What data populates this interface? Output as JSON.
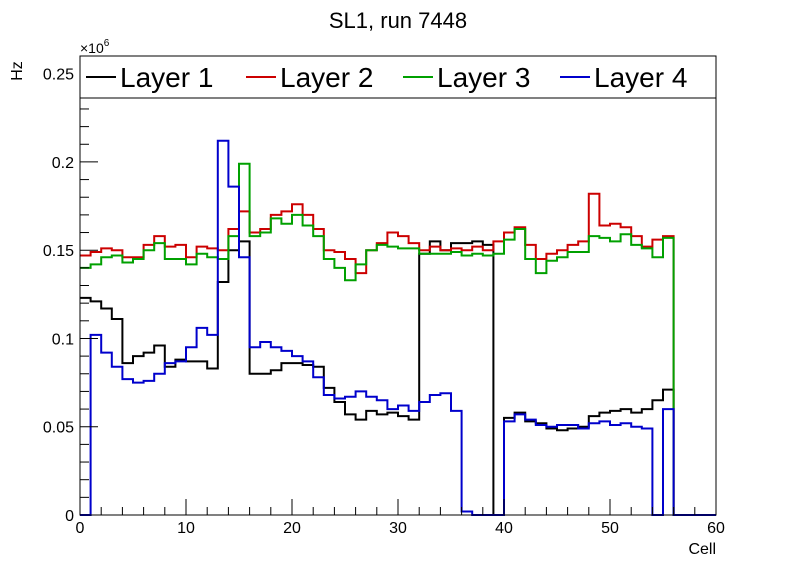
{
  "chart_data": {
    "type": "step",
    "title": "SL1, run 7448",
    "xlabel": "Cell",
    "ylabel": "Hz",
    "y_multiplier": "×10",
    "y_multiplier_exp": "6",
    "xlim": [
      0,
      60
    ],
    "ylim": [
      0,
      0.26
    ],
    "x_ticks": [
      0,
      10,
      20,
      30,
      40,
      50,
      60
    ],
    "x_tick_labels": [
      "0",
      "10",
      "20",
      "30",
      "40",
      "50",
      "60"
    ],
    "y_ticks": [
      0,
      0.05,
      0.1,
      0.15,
      0.2,
      0.25
    ],
    "y_tick_labels": [
      "0",
      "0.05",
      "0.1",
      "0.15",
      "0.2",
      "0.25"
    ],
    "bin_edges_start": 0,
    "bin_width": 1,
    "grid": false,
    "legend_position": "top",
    "series": [
      {
        "name": "Layer 1",
        "color": "#000000",
        "values": [
          0.123,
          0.121,
          0.117,
          0.111,
          0.086,
          0.09,
          0.092,
          0.096,
          0.084,
          0.088,
          0.087,
          0.087,
          0.083,
          0.132,
          0.15,
          0.155,
          0.08,
          0.08,
          0.082,
          0.086,
          0.086,
          0.085,
          0.084,
          0.072,
          0.064,
          0.057,
          0.054,
          0.059,
          0.057,
          0.058,
          0.056,
          0.054,
          0.148,
          0.155,
          0.15,
          0.154,
          0.154,
          0.155,
          0.153,
          0.0,
          0.055,
          0.058,
          0.053,
          0.052,
          0.049,
          0.048,
          0.049,
          0.05,
          0.056,
          0.058,
          0.059,
          0.06,
          0.058,
          0.06,
          0.065,
          0.071,
          0.0,
          0.0,
          0.0,
          0.0
        ]
      },
      {
        "name": "Layer 2",
        "color": "#cc0000",
        "values": [
          0.147,
          0.149,
          0.151,
          0.15,
          0.146,
          0.146,
          0.153,
          0.158,
          0.152,
          0.153,
          0.146,
          0.152,
          0.151,
          0.15,
          0.162,
          0.172,
          0.16,
          0.162,
          0.17,
          0.172,
          0.176,
          0.17,
          0.162,
          0.15,
          0.149,
          0.145,
          0.137,
          0.15,
          0.154,
          0.16,
          0.158,
          0.154,
          0.15,
          0.152,
          0.15,
          0.151,
          0.15,
          0.152,
          0.15,
          0.155,
          0.16,
          0.163,
          0.153,
          0.145,
          0.148,
          0.15,
          0.153,
          0.155,
          0.182,
          0.164,
          0.165,
          0.163,
          0.158,
          0.152,
          0.156,
          0.158,
          0.0,
          0.0,
          0.0,
          0.0
        ]
      },
      {
        "name": "Layer 3",
        "color": "#00a000",
        "values": [
          0.14,
          0.142,
          0.146,
          0.147,
          0.143,
          0.145,
          0.15,
          0.154,
          0.145,
          0.145,
          0.142,
          0.148,
          0.146,
          0.145,
          0.158,
          0.199,
          0.158,
          0.16,
          0.168,
          0.165,
          0.17,
          0.164,
          0.158,
          0.145,
          0.14,
          0.133,
          0.142,
          0.15,
          0.153,
          0.152,
          0.151,
          0.151,
          0.148,
          0.148,
          0.148,
          0.149,
          0.147,
          0.148,
          0.147,
          0.148,
          0.156,
          0.162,
          0.145,
          0.137,
          0.144,
          0.146,
          0.149,
          0.149,
          0.158,
          0.157,
          0.155,
          0.159,
          0.153,
          0.151,
          0.146,
          0.157,
          0.0,
          0.0,
          0.0,
          0.0
        ]
      },
      {
        "name": "Layer 4",
        "color": "#0000cc",
        "values": [
          0.0,
          0.102,
          0.092,
          0.084,
          0.077,
          0.075,
          0.076,
          0.08,
          0.086,
          0.087,
          0.095,
          0.106,
          0.102,
          0.212,
          0.186,
          0.146,
          0.095,
          0.098,
          0.095,
          0.093,
          0.09,
          0.087,
          0.078,
          0.068,
          0.066,
          0.067,
          0.07,
          0.067,
          0.065,
          0.06,
          0.062,
          0.059,
          0.064,
          0.068,
          0.069,
          0.059,
          0.002,
          0.0,
          0.0,
          0.0,
          0.053,
          0.057,
          0.054,
          0.051,
          0.05,
          0.051,
          0.051,
          0.049,
          0.052,
          0.053,
          0.051,
          0.052,
          0.05,
          0.049,
          0.0,
          0.06,
          0.0,
          0.0,
          0.0,
          0.0
        ]
      }
    ]
  }
}
